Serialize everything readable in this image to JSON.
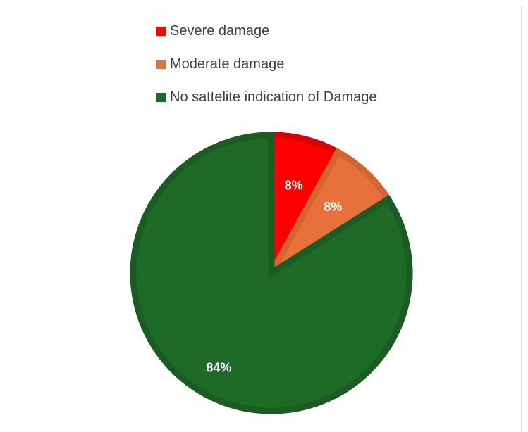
{
  "chart_data": {
    "type": "pie",
    "title": "",
    "legend_position": "top",
    "series": [
      {
        "categories": [
          "Severe damage",
          "Moderate damage",
          "No sattelite indication of Damage"
        ],
        "values": [
          8,
          8,
          84
        ],
        "labels": [
          "8%",
          "8%",
          "84%"
        ],
        "colors": [
          "#ff0000",
          "#e8703a",
          "#1e6b28"
        ],
        "border_colors": [
          "#d80000",
          "#d26532",
          "#1a5c23"
        ]
      }
    ]
  }
}
